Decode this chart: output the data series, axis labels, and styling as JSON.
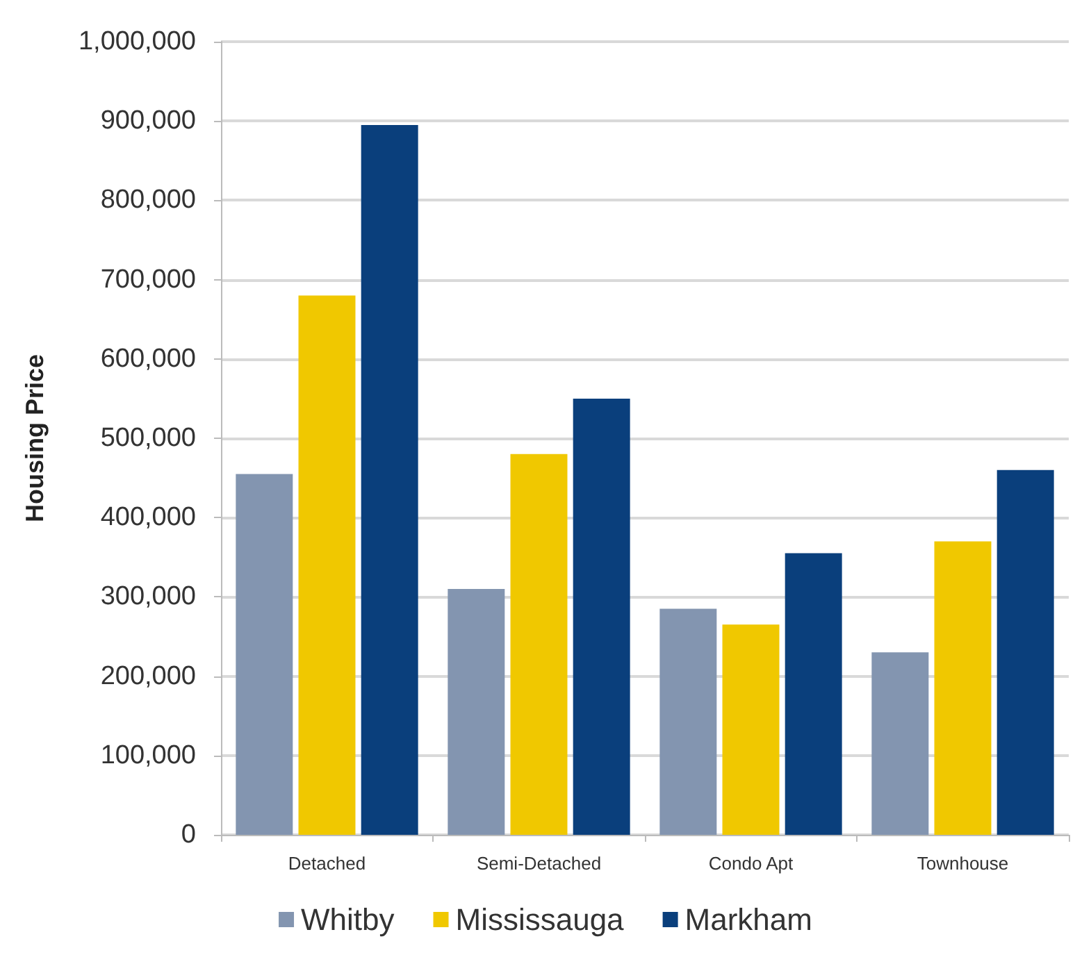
{
  "chart_data": {
    "type": "bar",
    "ylabel": "Housing Price",
    "categories": [
      "Detached",
      "Semi-Detached",
      "Condo Apt",
      "Townhouse"
    ],
    "series": [
      {
        "name": "Whitby",
        "color": "#8395b0",
        "values": [
          455000,
          310000,
          285000,
          230000
        ]
      },
      {
        "name": "Mississauga",
        "color": "#f0c800",
        "values": [
          680000,
          480000,
          265000,
          370000
        ]
      },
      {
        "name": "Markham",
        "color": "#0a3f7c",
        "values": [
          895000,
          550000,
          355000,
          460000
        ]
      }
    ],
    "ylim": [
      0,
      1000000
    ],
    "yticks": [
      0,
      {
        "value": 100000,
        "label": "100,000"
      },
      {
        "value": 200000,
        "label": "200,000"
      },
      {
        "value": 300000,
        "label": "300,000"
      },
      {
        "value": 400000,
        "label": "400,000"
      },
      {
        "value": 500000,
        "label": "500,000"
      },
      {
        "value": 600000,
        "label": "600,000"
      },
      {
        "value": 700000,
        "label": "700,000"
      },
      {
        "value": 800000,
        "label": "800,000"
      },
      {
        "value": 900000,
        "label": "900,000"
      },
      {
        "value": 1000000,
        "label": "1,000,000"
      }
    ],
    "grid": "y",
    "legend": "bottom"
  }
}
